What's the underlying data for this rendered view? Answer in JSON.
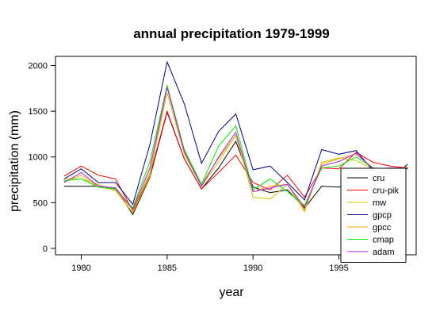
{
  "chart_data": {
    "type": "line",
    "title": "annual precipitation 1979-1999",
    "xlabel": "year",
    "ylabel": "precipitation (mm)",
    "xlim": [
      1978.5,
      1999.5
    ],
    "ylim": [
      -70,
      2100
    ],
    "xticks": [
      1980,
      1985,
      1990,
      1995
    ],
    "yticks": [
      0,
      500,
      1000,
      1500,
      2000
    ],
    "grid": false,
    "legend_position": "bottom-right",
    "x": [
      1979,
      1980,
      1981,
      1982,
      1983,
      1984,
      1985,
      1986,
      1987,
      1988,
      1989,
      1990,
      1991,
      1992,
      1993,
      1994,
      1995,
      1996,
      1997,
      1998,
      1999
    ],
    "series": [
      {
        "name": "cru",
        "color": "#000000",
        "values": [
          680,
          680,
          680,
          660,
          370,
          780,
          1490,
          980,
          650,
          880,
          1170,
          670,
          610,
          640,
          440,
          680,
          670,
          730,
          880,
          760,
          920
        ]
      },
      {
        "name": "cru-pik",
        "color": "#ff0000",
        "values": [
          790,
          900,
          800,
          760,
          410,
          800,
          1500,
          980,
          650,
          830,
          1020,
          720,
          640,
          800,
          560,
          880,
          870,
          1050,
          940,
          900,
          880
        ]
      },
      {
        "name": "mw",
        "color": "#c8c800",
        "values": [
          760,
          760,
          700,
          630,
          390,
          790,
          1790,
          1030,
          680,
          950,
          1240,
          560,
          540,
          700,
          400,
          940,
          990,
          960,
          870,
          860,
          880
        ]
      },
      {
        "name": "gpcp",
        "color": "#000080",
        "values": [
          760,
          870,
          720,
          720,
          480,
          1140,
          2040,
          1580,
          930,
          1280,
          1470,
          860,
          900,
          720,
          530,
          1080,
          1030,
          1070,
          850,
          870,
          870
        ]
      },
      {
        "name": "gpcc",
        "color": "#ffa500",
        "values": [
          730,
          800,
          670,
          640,
          420,
          830,
          1700,
          1040,
          700,
          990,
          1230,
          620,
          680,
          700,
          420,
          920,
          980,
          1030,
          880,
          860,
          890
        ]
      },
      {
        "name": "cmap",
        "color": "#00ee00",
        "values": [
          740,
          760,
          670,
          650,
          440,
          950,
          1780,
          1080,
          700,
          1120,
          1340,
          640,
          760,
          620,
          470,
          880,
          900,
          1000,
          880,
          870,
          880
        ]
      },
      {
        "name": "adam",
        "color": "#a020f0",
        "values": [
          720,
          830,
          680,
          660,
          430,
          880,
          1760,
          1060,
          680,
          1000,
          1270,
          620,
          660,
          700,
          450,
          900,
          950,
          1040,
          870,
          880,
          880
        ]
      }
    ]
  }
}
